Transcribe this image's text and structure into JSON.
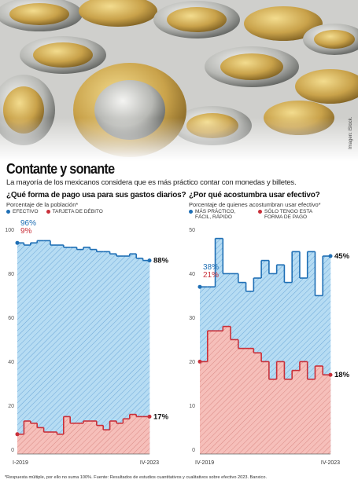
{
  "header": {
    "title": "Contante y sonante",
    "subtitle": "La mayoría de los mexicanos considera que es más práctico contar con monedas y billetes.",
    "photo_credit": "Imagen: iStock."
  },
  "footnote": "*Respuesta múltiple, por ello no suma 100%. Fuente: Resultados de estudios cuantitativos y cualitativos sobre efectivo 2023. Banxico.",
  "chart_data": [
    {
      "type": "step",
      "title": "¿Qué forma de pago usa para sus gastos diarios?",
      "subtitle": "Porcentaje de la población*",
      "categories": [
        "I-2019",
        null,
        null,
        null,
        null,
        null,
        null,
        null,
        null,
        null,
        null,
        null,
        null,
        null,
        null,
        null,
        null,
        null,
        null,
        "IV-2023"
      ],
      "series": [
        {
          "name": "EFECTIVO",
          "color": "#1f6fb5",
          "values": [
            96,
            95,
            96,
            97,
            97,
            95,
            95,
            94,
            94,
            93,
            94,
            93,
            92,
            92,
            91,
            90,
            90,
            91,
            89,
            88
          ],
          "value_labels": [
            "96%",
            null,
            null,
            null,
            null,
            null,
            null,
            null,
            null,
            null,
            null,
            null,
            null,
            null,
            null,
            null,
            null,
            null,
            null,
            "88%"
          ]
        },
        {
          "name": "TARJETA DE DÉBITO",
          "color": "#c9303a",
          "values": [
            9,
            15,
            14,
            12,
            10,
            10,
            9,
            17,
            14,
            14,
            15,
            15,
            13,
            11,
            15,
            14,
            16,
            18,
            17,
            17
          ],
          "value_labels": [
            "9%",
            null,
            null,
            null,
            null,
            null,
            null,
            null,
            null,
            null,
            null,
            null,
            null,
            null,
            null,
            null,
            null,
            null,
            null,
            "17%"
          ]
        }
      ],
      "ylim": [
        0,
        100
      ],
      "yticks": [
        0,
        20,
        40,
        60,
        80,
        100
      ],
      "grid": false
    },
    {
      "type": "step",
      "title": "¿Por qué acostumbra usar efectivo?",
      "subtitle": "Porcentaje de quienes acostumbran usar efectivo*",
      "categories": [
        "IV-2019",
        null,
        null,
        null,
        null,
        null,
        null,
        null,
        null,
        null,
        null,
        null,
        null,
        null,
        null,
        null,
        "IV-2023"
      ],
      "series": [
        {
          "name": "MÁS PRÁCTICO, FÁCIL, RÁPIDO",
          "color": "#1f6fb5",
          "values": [
            38,
            38,
            49,
            41,
            41,
            39,
            37,
            40,
            44,
            41,
            43,
            39,
            46,
            40,
            46,
            36,
            45
          ],
          "value_labels": [
            "38%",
            null,
            null,
            null,
            null,
            null,
            null,
            null,
            null,
            null,
            null,
            null,
            null,
            null,
            null,
            null,
            "45%"
          ]
        },
        {
          "name": "SÓLO TENGO ESTA FORMA DE PAGO",
          "color": "#c9303a",
          "values": [
            21,
            28,
            28,
            29,
            26,
            24,
            24,
            23,
            21,
            17,
            21,
            17,
            19,
            21,
            17,
            20,
            18
          ],
          "value_labels": [
            "21%",
            null,
            null,
            null,
            null,
            null,
            null,
            null,
            null,
            null,
            null,
            null,
            null,
            null,
            null,
            null,
            "18%"
          ]
        }
      ],
      "ylim": [
        0,
        50
      ],
      "yticks": [
        0,
        10,
        20,
        30,
        40,
        50
      ],
      "grid": false
    }
  ]
}
